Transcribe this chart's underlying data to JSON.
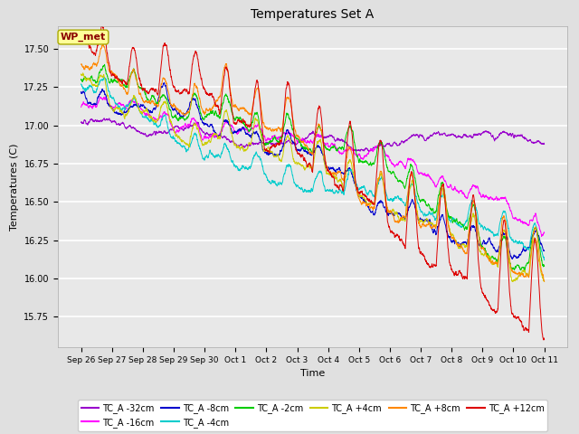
{
  "title": "Temperatures Set A",
  "xlabel": "Time",
  "ylabel": "Temperatures (C)",
  "ylim": [
    15.55,
    17.65
  ],
  "background_color": "#e0e0e0",
  "plot_bg_color": "#e8e8e8",
  "wp_met_label": "WP_met",
  "wp_met_box_color": "#ffff99",
  "wp_met_text_color": "#8b0000",
  "series": [
    {
      "label": "TC_A -32cm",
      "color": "#9900cc"
    },
    {
      "label": "TC_A -16cm",
      "color": "#ff00ff"
    },
    {
      "label": "TC_A -8cm",
      "color": "#0000cc"
    },
    {
      "label": "TC_A -4cm",
      "color": "#00cccc"
    },
    {
      "label": "TC_A -2cm",
      "color": "#00cc00"
    },
    {
      "label": "TC_A +4cm",
      "color": "#cccc00"
    },
    {
      "label": "TC_A +8cm",
      "color": "#ff8800"
    },
    {
      "label": "TC_A +12cm",
      "color": "#dd0000"
    }
  ],
  "x_tick_labels": [
    "Sep 26",
    "Sep 27",
    "Sep 28",
    "Sep 29",
    "Sep 30",
    "Oct 1",
    "Oct 2",
    "Oct 3",
    "Oct 4",
    "Oct 5",
    "Oct 6",
    "Oct 7",
    "Oct 8",
    "Oct 9",
    "Oct 10",
    "Oct 11"
  ],
  "n_points": 3000,
  "legend_ncol": 6
}
